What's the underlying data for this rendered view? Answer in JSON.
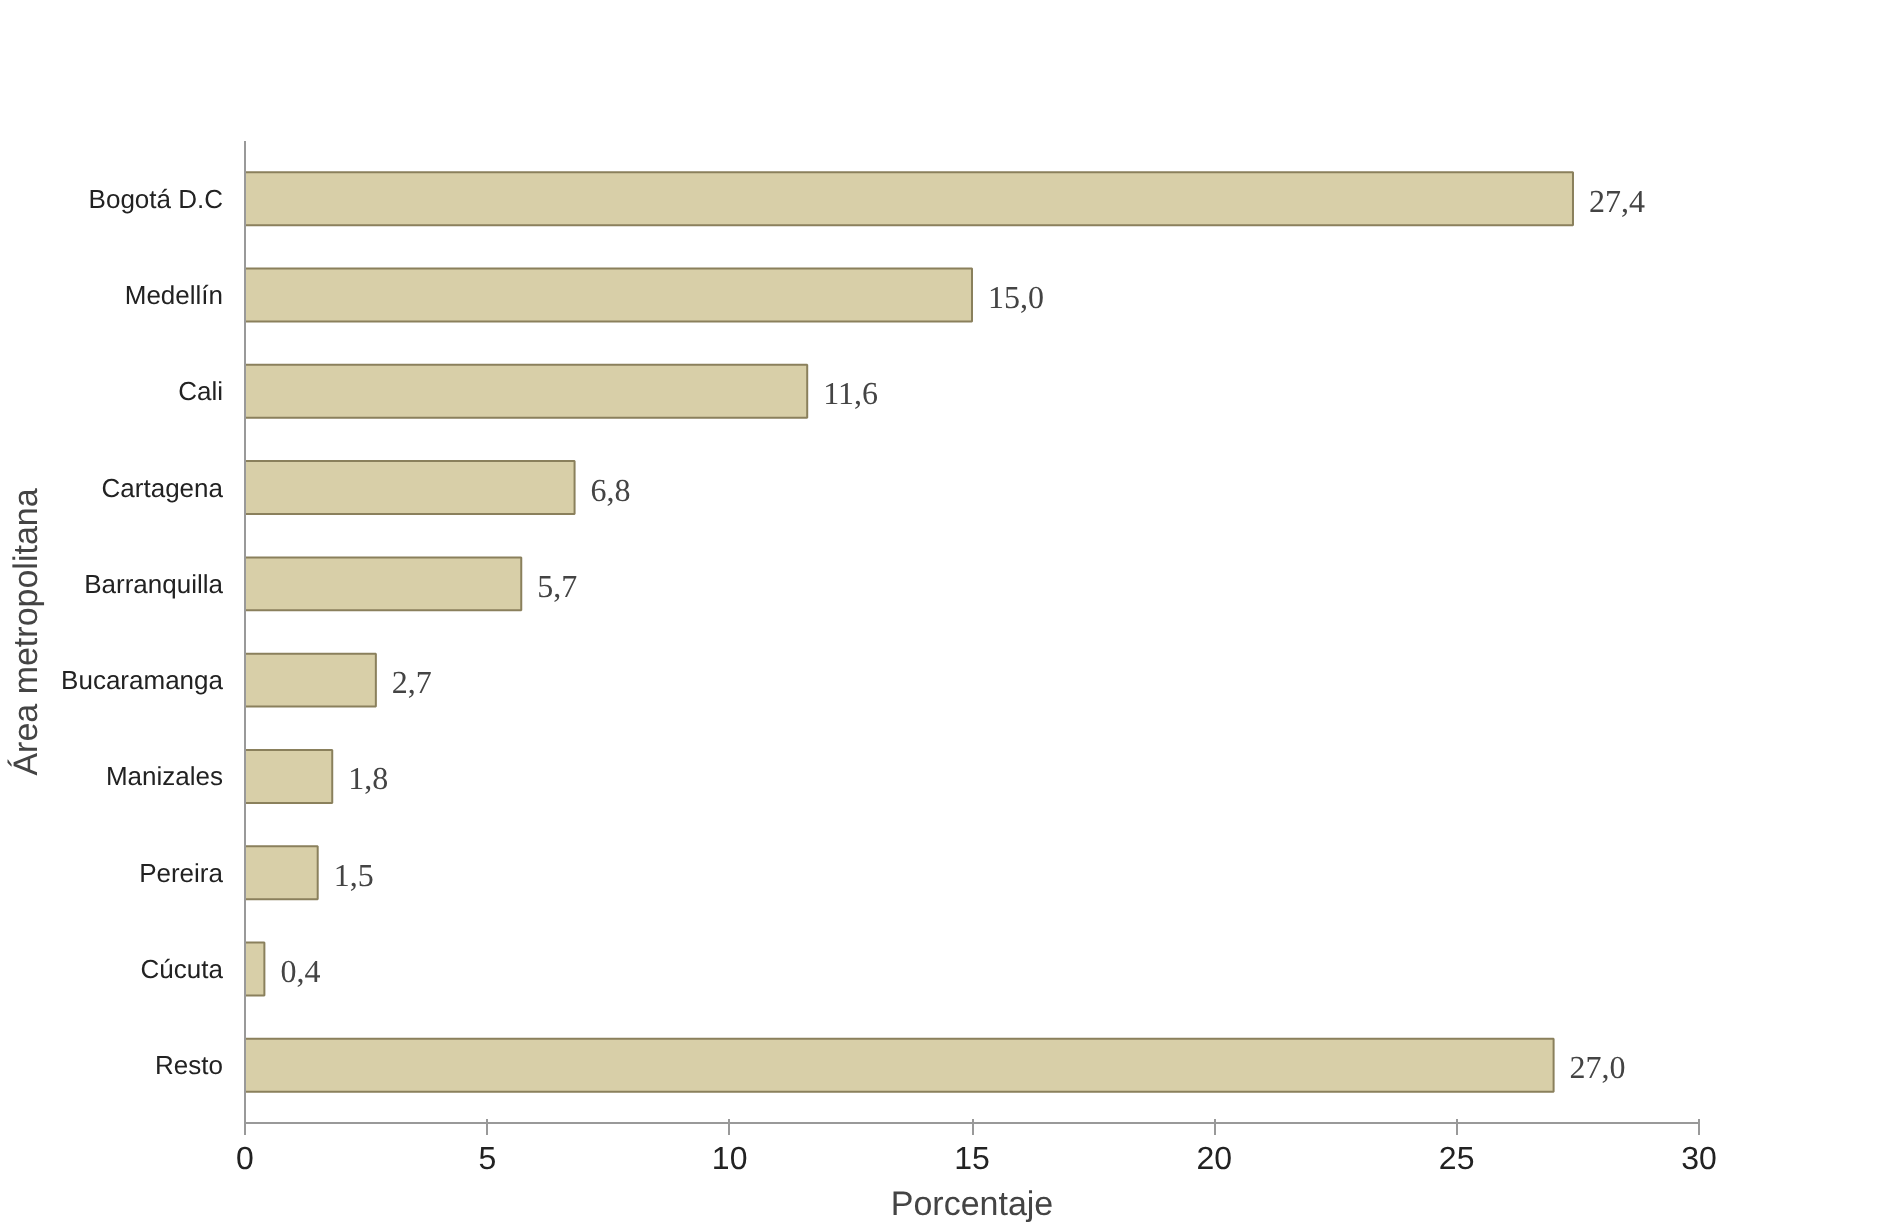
{
  "chart_data": {
    "type": "bar",
    "orientation": "horizontal",
    "xlabel": "Porcentaje",
    "ylabel": "Área metropolitana",
    "categories": [
      "Bogotá D.C",
      "Medellín",
      "Cali",
      "Cartagena",
      "Barranquilla",
      "Bucaramanga",
      "Manizales",
      "Pereira",
      "Cúcuta",
      "Resto"
    ],
    "values": [
      27.4,
      15.0,
      11.6,
      6.8,
      5.7,
      2.7,
      1.8,
      1.5,
      0.4,
      27.0
    ],
    "value_labels": [
      "27,4",
      "15,0",
      "11,6",
      "6,8",
      "5,7",
      "2,7",
      "1,8",
      "1,5",
      "0,4",
      "27,0"
    ],
    "color": "#d8cfa8",
    "xlim": [
      0,
      30
    ],
    "xticks": [
      0,
      5,
      10,
      15,
      20,
      25,
      30
    ],
    "grid": false
  }
}
